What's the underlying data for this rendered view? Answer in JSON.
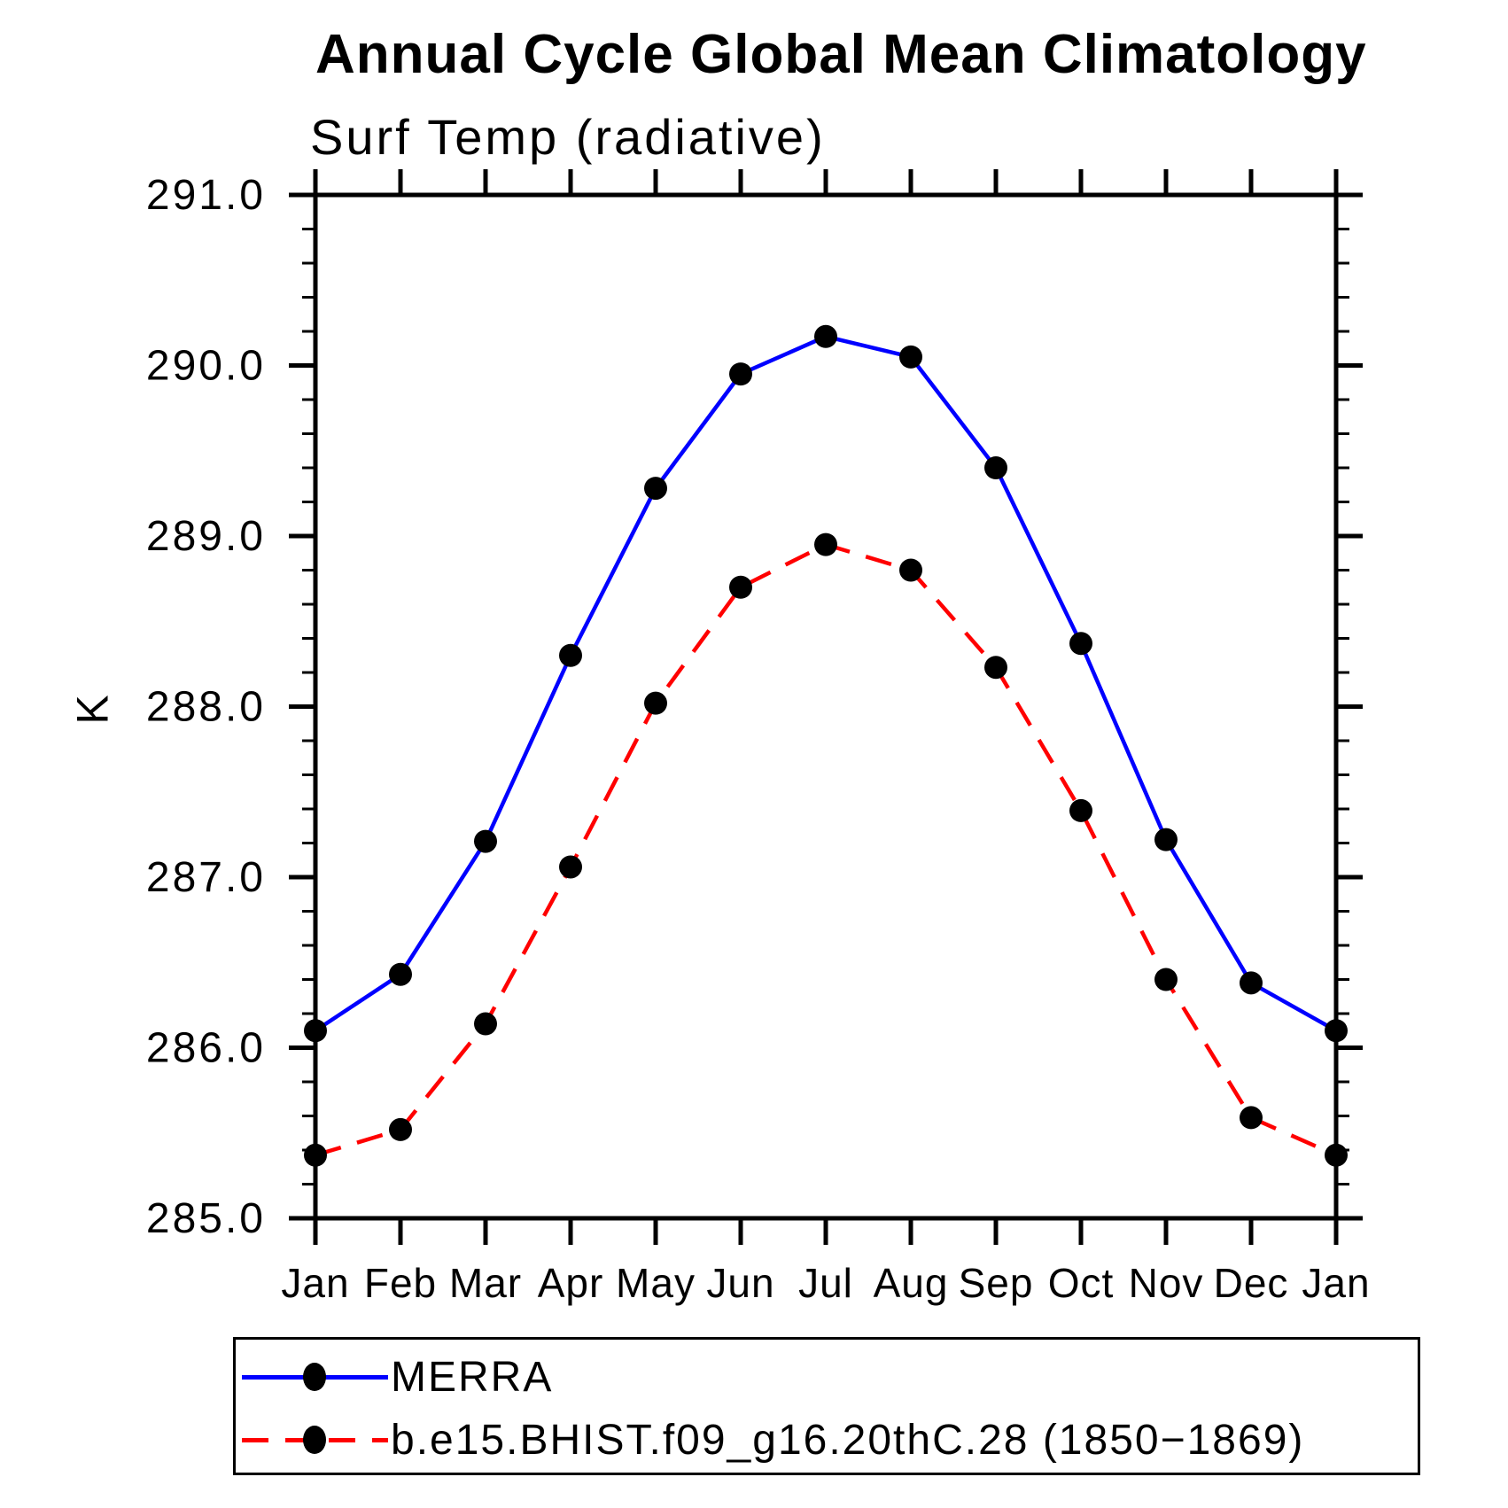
{
  "chart_data": {
    "type": "line",
    "title": "Annual Cycle Global Mean Climatology",
    "subtitle": "Surf Temp (radiative)",
    "ylabel": "K",
    "xlabel": "",
    "categories": [
      "Jan",
      "Feb",
      "Mar",
      "Apr",
      "May",
      "Jun",
      "Jul",
      "Aug",
      "Sep",
      "Oct",
      "Nov",
      "Dec",
      "Jan"
    ],
    "series": [
      {
        "name": "MERRA",
        "color": "#0000ff",
        "line_style": "solid",
        "marker": "filled-circle",
        "values": [
          286.1,
          286.43,
          287.21,
          288.3,
          289.28,
          289.95,
          290.17,
          290.05,
          289.4,
          288.37,
          287.22,
          286.38,
          286.1
        ]
      },
      {
        "name": "b.e15.BHIST.f09_g16.20thC.28 (1850−1869)",
        "color": "#ff0000",
        "line_style": "dashed",
        "marker": "filled-circle",
        "values": [
          285.37,
          285.52,
          286.14,
          287.06,
          288.02,
          288.7,
          288.95,
          288.8,
          288.23,
          287.39,
          286.4,
          285.59,
          285.37
        ]
      }
    ],
    "y_axis": {
      "min": 285.0,
      "max": 291.0,
      "major_step": 1.0,
      "minor_step": 0.2,
      "tick_labels": [
        "285.0",
        "286.0",
        "287.0",
        "288.0",
        "289.0",
        "290.0",
        "291.0"
      ]
    },
    "x_axis": {
      "ticks_on_top_and_bottom": true
    },
    "grid": false,
    "legend_position": "bottom-left-box",
    "marker_color": "#000000",
    "axis_color": "#000000",
    "background_color": "#ffffff"
  }
}
